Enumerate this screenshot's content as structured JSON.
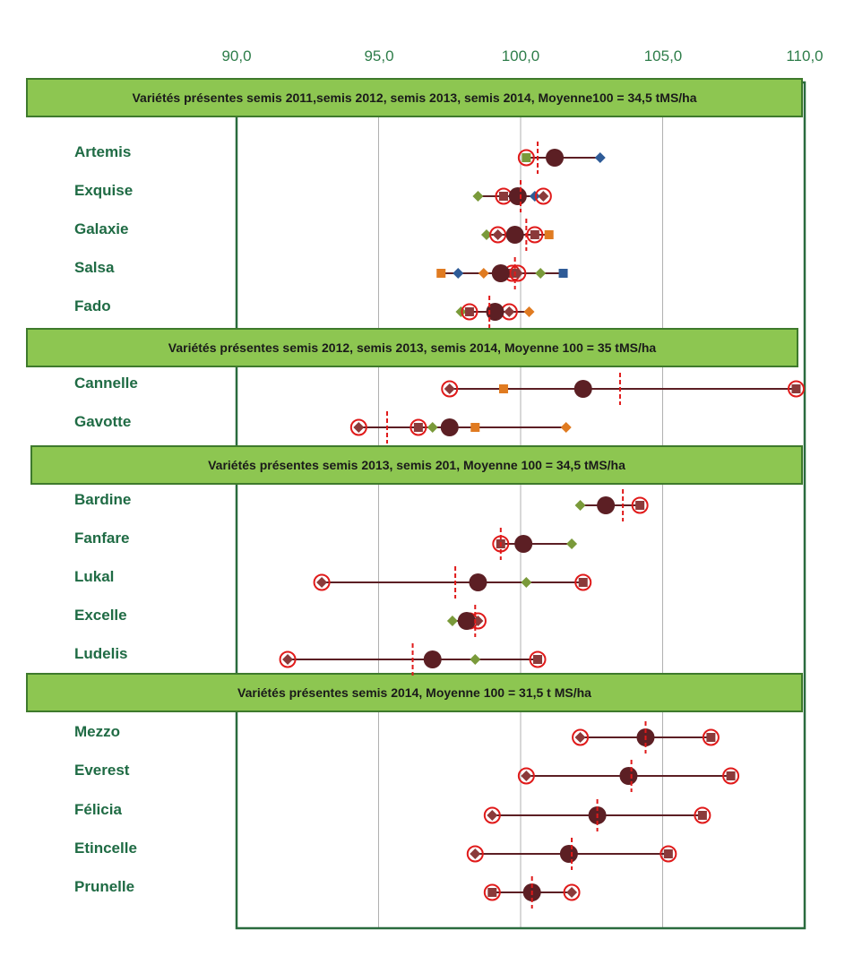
{
  "chart_data": {
    "type": "scatter",
    "orientation": "horizontal-dot-plot",
    "x_ticks": [
      "90,0",
      "95,0",
      "100,0",
      "105,0",
      "110,0"
    ],
    "xlim": [
      90,
      110
    ],
    "grid": true,
    "colors": {
      "mean": "#5c1f24",
      "y2011": "#2e5b97",
      "y2012": "#e07b21",
      "y2013": "#7a9a3a",
      "y2014": "#8b3a3a",
      "ring": "#e01a1a",
      "banner_fill": "#8dc651",
      "banner_border": "#3e7a2c",
      "frame": "#2a6b3e",
      "gridline": "#b0b0b0",
      "label": "#1f6b44"
    },
    "groups": [
      {
        "title": "Variétés présentes semis 2011,semis 2012, semis 2013, semis 2014, Moyenne100  = 34,5 tMS/ha",
        "varieties": [
          {
            "name": "Artemis",
            "mean": 101.2,
            "line": [
              100.2,
              102.8
            ],
            "lsd": 100.6,
            "points": [
              {
                "v": 102.8,
                "shape": "diamond",
                "c": "y2011"
              },
              {
                "v": 100.2,
                "shape": "square",
                "c": "y2013",
                "ring": true
              }
            ]
          },
          {
            "name": "Exquise",
            "mean": 99.9,
            "line": [
              98.5,
              100.8
            ],
            "lsd": 100.0,
            "points": [
              {
                "v": 98.5,
                "shape": "diamond",
                "c": "y2013"
              },
              {
                "v": 100.5,
                "shape": "diamond",
                "c": "y2011"
              },
              {
                "v": 99.4,
                "shape": "square",
                "c": "y2014",
                "ring": true
              },
              {
                "v": 100.8,
                "shape": "diamond",
                "c": "y2014",
                "ring": true
              }
            ]
          },
          {
            "name": "Galaxie",
            "mean": 99.8,
            "line": [
              98.8,
              101.0
            ],
            "lsd": 100.2,
            "points": [
              {
                "v": 98.8,
                "shape": "diamond",
                "c": "y2013"
              },
              {
                "v": 101.0,
                "shape": "square",
                "c": "y2012"
              },
              {
                "v": 99.2,
                "shape": "diamond",
                "c": "y2014",
                "ring": true
              },
              {
                "v": 100.5,
                "shape": "square",
                "c": "y2014",
                "ring": true
              }
            ]
          },
          {
            "name": "Salsa",
            "mean": 99.3,
            "line": [
              97.2,
              101.5
            ],
            "lsd": 99.8,
            "points": [
              {
                "v": 97.2,
                "shape": "square",
                "c": "y2012"
              },
              {
                "v": 97.8,
                "shape": "diamond",
                "c": "y2011"
              },
              {
                "v": 98.7,
                "shape": "diamond",
                "c": "y2012"
              },
              {
                "v": 100.7,
                "shape": "diamond",
                "c": "y2013"
              },
              {
                "v": 101.5,
                "shape": "square",
                "c": "y2011"
              },
              {
                "v": 99.7,
                "shape": "square",
                "c": "y2014",
                "ring": true
              },
              {
                "v": 99.9,
                "shape": "diamond",
                "c": "y2014",
                "ring": true
              }
            ]
          },
          {
            "name": "Fado",
            "mean": 99.1,
            "line": [
              97.9,
              100.3
            ],
            "lsd": 98.9,
            "points": [
              {
                "v": 97.9,
                "shape": "diamond",
                "c": "y2013"
              },
              {
                "v": 100.3,
                "shape": "diamond",
                "c": "y2012"
              },
              {
                "v": 98.2,
                "shape": "square",
                "c": "y2014",
                "ring": true
              },
              {
                "v": 99.6,
                "shape": "diamond",
                "c": "y2014",
                "ring": true
              }
            ]
          }
        ]
      },
      {
        "title": "Variétés présentes semis 2012, semis 2013, semis 2014, Moyenne 100 = 35 tMS/ha",
        "varieties": [
          {
            "name": "Cannelle",
            "mean": 102.2,
            "line": [
              97.5,
              109.7
            ],
            "lsd": 103.5,
            "points": [
              {
                "v": 99.4,
                "shape": "square",
                "c": "y2012"
              },
              {
                "v": 97.5,
                "shape": "diamond",
                "c": "y2014",
                "ring": true
              },
              {
                "v": 109.7,
                "shape": "square",
                "c": "y2014",
                "ring": true
              }
            ]
          },
          {
            "name": "Gavotte",
            "mean": 97.5,
            "line": [
              94.3,
              101.6
            ],
            "lsd": 95.3,
            "points": [
              {
                "v": 96.9,
                "shape": "diamond",
                "c": "y2013"
              },
              {
                "v": 98.4,
                "shape": "square",
                "c": "y2012"
              },
              {
                "v": 101.6,
                "shape": "diamond",
                "c": "y2012"
              },
              {
                "v": 94.3,
                "shape": "diamond",
                "c": "y2014",
                "ring": true
              },
              {
                "v": 96.4,
                "shape": "square",
                "c": "y2014",
                "ring": true
              }
            ]
          }
        ]
      },
      {
        "title": "Variétés présentes  semis 2013, semis 201, Moyenne  100 = 34,5 tMS/ha",
        "varieties": [
          {
            "name": "Bardine",
            "mean": 103.0,
            "line": [
              102.1,
              104.2
            ],
            "lsd": 103.6,
            "points": [
              {
                "v": 102.1,
                "shape": "diamond",
                "c": "y2013"
              },
              {
                "v": 104.2,
                "shape": "square",
                "c": "y2014",
                "ring": true
              },
              {
                "v": 103.0,
                "shape": "diamond",
                "c": "y2014",
                "ring": true
              }
            ]
          },
          {
            "name": "Fanfare",
            "mean": 100.1,
            "line": [
              99.3,
              101.8
            ],
            "lsd": 99.3,
            "points": [
              {
                "v": 101.8,
                "shape": "diamond",
                "c": "y2013"
              },
              {
                "v": 99.3,
                "shape": "square",
                "c": "y2014",
                "ring": true
              }
            ]
          },
          {
            "name": "Lukal",
            "mean": 98.5,
            "line": [
              93.0,
              102.2
            ],
            "lsd": 97.7,
            "points": [
              {
                "v": 100.2,
                "shape": "diamond",
                "c": "y2013"
              },
              {
                "v": 93.0,
                "shape": "diamond",
                "c": "y2014",
                "ring": true
              },
              {
                "v": 102.2,
                "shape": "square",
                "c": "y2014",
                "ring": true
              }
            ]
          },
          {
            "name": "Excelle",
            "mean": 98.1,
            "line": [
              97.6,
              98.5
            ],
            "lsd": 98.4,
            "points": [
              {
                "v": 97.6,
                "shape": "diamond",
                "c": "y2013"
              },
              {
                "v": 98.2,
                "shape": "square",
                "c": "y2014",
                "ring": true
              },
              {
                "v": 98.5,
                "shape": "diamond",
                "c": "y2014",
                "ring": true
              }
            ]
          },
          {
            "name": "Ludelis",
            "mean": 96.9,
            "line": [
              91.8,
              100.6
            ],
            "lsd": 96.2,
            "points": [
              {
                "v": 98.4,
                "shape": "diamond",
                "c": "y2013"
              },
              {
                "v": 91.8,
                "shape": "diamond",
                "c": "y2014",
                "ring": true
              },
              {
                "v": 100.6,
                "shape": "square",
                "c": "y2014",
                "ring": true
              }
            ]
          }
        ]
      },
      {
        "title": "Variétés présentes  semis 2014, Moyenne 100 = 31,5 t MS/ha",
        "varieties": [
          {
            "name": "Mezzo",
            "mean": 104.4,
            "line": [
              102.1,
              106.7
            ],
            "lsd": 104.4,
            "points": [
              {
                "v": 102.1,
                "shape": "diamond",
                "c": "y2014",
                "ring": true
              },
              {
                "v": 106.7,
                "shape": "square",
                "c": "y2014",
                "ring": true
              }
            ]
          },
          {
            "name": "Everest",
            "mean": 103.8,
            "line": [
              100.2,
              107.4
            ],
            "lsd": 103.9,
            "points": [
              {
                "v": 100.2,
                "shape": "diamond",
                "c": "y2014",
                "ring": true
              },
              {
                "v": 107.4,
                "shape": "square",
                "c": "y2014",
                "ring": true
              }
            ]
          },
          {
            "name": "Félicia",
            "mean": 102.7,
            "line": [
              99.0,
              106.4
            ],
            "lsd": 102.7,
            "points": [
              {
                "v": 99.0,
                "shape": "diamond",
                "c": "y2014",
                "ring": true
              },
              {
                "v": 106.4,
                "shape": "square",
                "c": "y2014",
                "ring": true
              }
            ]
          },
          {
            "name": "Etincelle",
            "mean": 101.7,
            "line": [
              98.4,
              105.2
            ],
            "lsd": 101.8,
            "points": [
              {
                "v": 98.4,
                "shape": "diamond",
                "c": "y2014",
                "ring": true
              },
              {
                "v": 105.2,
                "shape": "square",
                "c": "y2014",
                "ring": true
              }
            ]
          },
          {
            "name": "Prunelle",
            "mean": 100.4,
            "line": [
              99.0,
              101.8
            ],
            "lsd": 100.4,
            "points": [
              {
                "v": 99.0,
                "shape": "square",
                "c": "y2014",
                "ring": true
              },
              {
                "v": 101.8,
                "shape": "diamond",
                "c": "y2014",
                "ring": true
              }
            ]
          }
        ]
      }
    ]
  }
}
